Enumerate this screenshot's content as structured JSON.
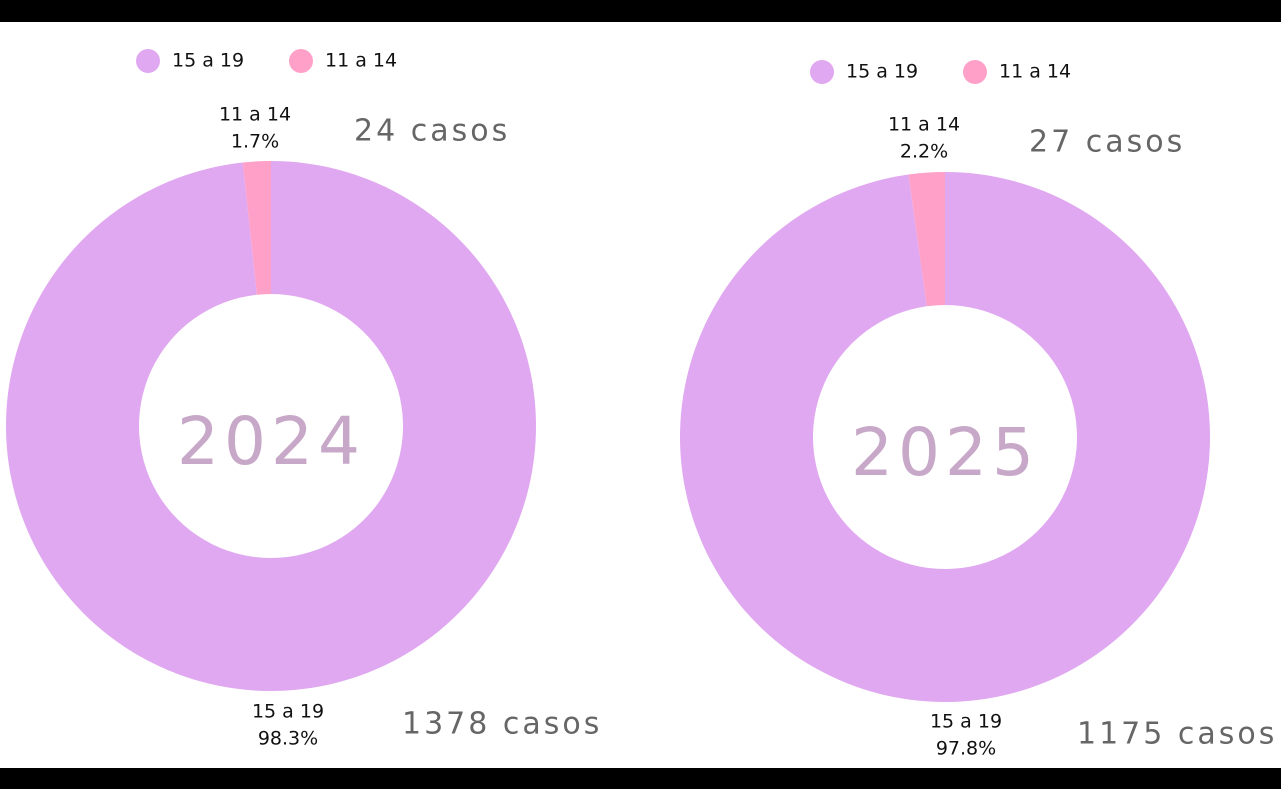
{
  "chart_data": [
    {
      "type": "pie",
      "donut": true,
      "center_label": "2024",
      "categories": [
        "15 a 19",
        "11 a 14"
      ],
      "values": [
        98.3,
        1.7
      ],
      "value_labels": [
        "98.3%",
        "1.7%"
      ],
      "colors": [
        "#e0a8f0",
        "#ffa0c8"
      ],
      "annotations": [
        "1378 casos",
        "24 casos"
      ]
    },
    {
      "type": "pie",
      "donut": true,
      "center_label": "2025",
      "categories": [
        "15 a 19",
        "11 a 14"
      ],
      "values": [
        97.8,
        2.2
      ],
      "value_labels": [
        "97.8%",
        "2.2%"
      ],
      "colors": [
        "#e0a8f0",
        "#ffa0c8"
      ],
      "annotations": [
        "1175 casos",
        "27 casos"
      ]
    }
  ]
}
